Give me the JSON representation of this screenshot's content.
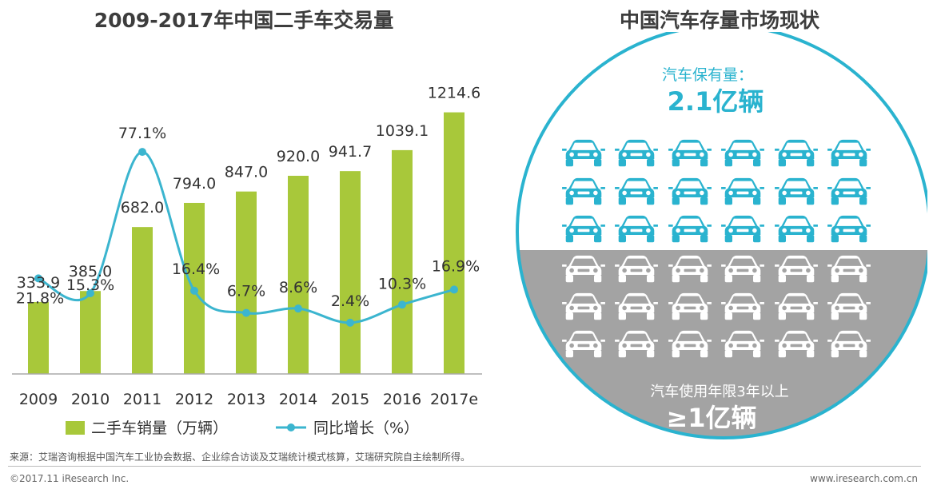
{
  "left_title": "2009-2017年中国二手车交易量",
  "right_title": "中国汽车存量市场现状",
  "chart_data": {
    "type": "bar",
    "title": "2009-2017年中国二手车交易量",
    "categories": [
      "2009",
      "2010",
      "2011",
      "2012",
      "2013",
      "2014",
      "2015",
      "2016",
      "2017e"
    ],
    "series": [
      {
        "name": "二手车销量（万辆）",
        "type": "bar",
        "color": "#a8c83a",
        "values": [
          333.9,
          385.0,
          682.0,
          794.0,
          847.0,
          920.0,
          941.7,
          1039.1,
          1214.6
        ],
        "labels": [
          "333.9",
          "385.0",
          "682.0",
          "794.0",
          "847.0",
          "920.0",
          "941.7",
          "1039.1",
          "1214.6"
        ]
      },
      {
        "name": "同比增长（%）",
        "type": "line",
        "color": "#3bb5cf",
        "values": [
          21.8,
          15.3,
          77.1,
          16.4,
          6.7,
          8.6,
          2.4,
          10.3,
          16.9
        ],
        "labels": [
          "21.8%",
          "15.3%",
          "77.1%",
          "16.4%",
          "6.7%",
          "8.6%",
          "2.4%",
          "10.3%",
          "16.9%"
        ]
      }
    ],
    "ylim_bar": [
      0,
      1380
    ],
    "ylim_line": [
      -20,
      110
    ],
    "grid": false,
    "legend": "bottom"
  },
  "stock_panel": {
    "top_label": "汽车保有量：",
    "top_value": "2.1亿辆",
    "bottom_label": "汽车使用年限3年以上",
    "bottom_value": "≥1亿辆",
    "teal_cars": 18,
    "gray_cars": 18,
    "accent": "#2ab3cf",
    "gray": "#a3a3a3"
  },
  "footer": {
    "source": "来源：艾瑞咨询根据中国汽车工业协会数据、企业综合访谈及艾瑞统计模式核算，艾瑞研究院自主绘制所得。",
    "copyright": "©2017.11 iResearch Inc.",
    "website": "www.iresearch.com.cn"
  }
}
